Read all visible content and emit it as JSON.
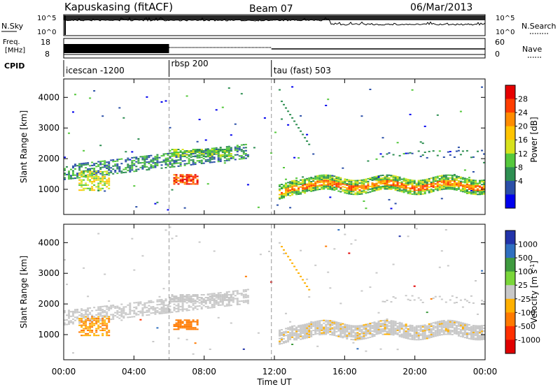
{
  "header": {
    "station": "Kapuskasing (fitACF)",
    "beam": "Beam 07",
    "date": "06/Mar/2013"
  },
  "top_panels": {
    "nsky_label": "N.Sky",
    "nsearch_label": "N.Search",
    "noise_ticks_left": [
      "10^5",
      "10^0"
    ],
    "noise_ticks_right": [
      "10^5",
      "10^0"
    ],
    "freq_label_1": "Freq.",
    "freq_label_2": "[MHz]",
    "freq_ticks": [
      "18",
      "8"
    ],
    "nave_label": "Nave",
    "nave_ticks": [
      "60",
      "0"
    ],
    "cpid_label": "CPID",
    "cpid_segments": [
      {
        "label": "icescan -1200",
        "start_hour": 0.0
      },
      {
        "label": "rbsp 200",
        "start_hour": 6.0
      },
      {
        "label": "tau (fast) 503",
        "start_hour": 11.83
      }
    ]
  },
  "chart_data": [
    {
      "type": "heatmap",
      "name": "power",
      "xlabel": "",
      "ylabel": "Slant Range [km]",
      "xlim": [
        0,
        24
      ],
      "ylim": [
        180,
        4600
      ],
      "yticks": [
        1000,
        2000,
        3000,
        4000
      ],
      "colorbar": {
        "label": "Power [dB]",
        "ticks": [
          "28",
          "24",
          "20",
          "16",
          "12",
          "8",
          "4"
        ],
        "colors": [
          "#e60000",
          "#ff3d00",
          "#ff8c00",
          "#ffc400",
          "#d7e21d",
          "#55c83c",
          "#2e8f52",
          "#2b4fa8",
          "#0000ee"
        ]
      }
    },
    {
      "type": "heatmap",
      "name": "velocity",
      "xlabel": "Time UT",
      "ylabel": "Slant Range [km]",
      "xlim": [
        0,
        24
      ],
      "ylim": [
        180,
        4600
      ],
      "yticks": [
        1000,
        2000,
        3000,
        4000
      ],
      "xticks": [
        "00:00",
        "04:00",
        "08:00",
        "12:00",
        "16:00",
        "20:00",
        "00:00"
      ],
      "colorbar": {
        "label": "Velocity [m s",
        "label_sup": "-1",
        "label_end": "]",
        "ticks": [
          "1000",
          "500",
          "100",
          "25",
          "-25",
          "-100",
          "-500",
          "-1000"
        ],
        "colors": [
          "#2233aa",
          "#2f6fc0",
          "#3e9a3e",
          "#7ad63a",
          "#c8c8c8",
          "#ffb000",
          "#ff7a00",
          "#ff3000",
          "#e00000"
        ]
      }
    }
  ]
}
